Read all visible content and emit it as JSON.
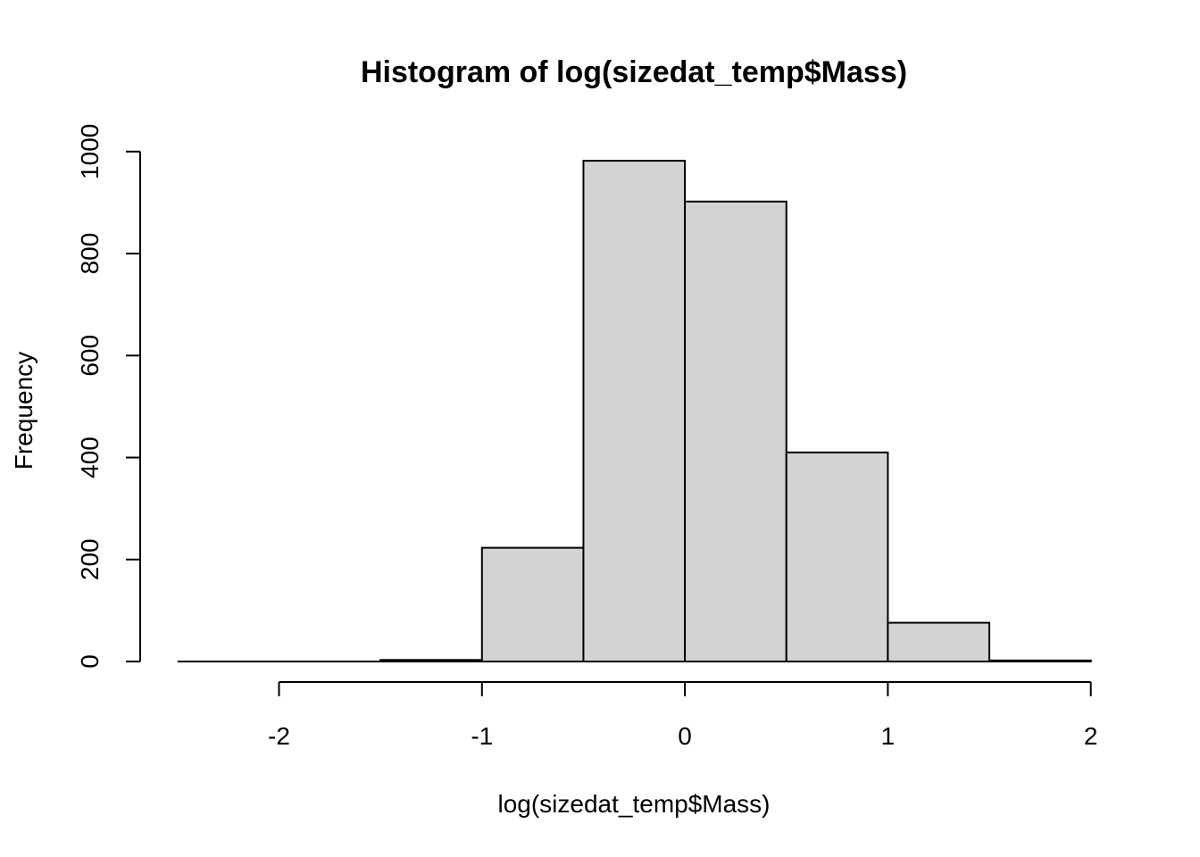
{
  "chart_data": {
    "type": "bar",
    "title": "Histogram of log(sizedat_temp$Mass)",
    "xlabel": "log(sizedat_temp$Mass)",
    "ylabel": "Frequency",
    "bins": [
      {
        "from": -2.5,
        "to": -2.0,
        "count": 1
      },
      {
        "from": -2.0,
        "to": -1.5,
        "count": 0
      },
      {
        "from": -1.5,
        "to": -1.0,
        "count": 3
      },
      {
        "from": -1.0,
        "to": -0.5,
        "count": 223
      },
      {
        "from": -0.5,
        "to": 0.0,
        "count": 982
      },
      {
        "from": 0.0,
        "to": 0.5,
        "count": 902
      },
      {
        "from": 0.5,
        "to": 1.0,
        "count": 410
      },
      {
        "from": 1.0,
        "to": 1.5,
        "count": 76
      },
      {
        "from": 1.5,
        "to": 2.0,
        "count": 2
      }
    ],
    "x_ticks": [
      -2,
      -1,
      0,
      1,
      2
    ],
    "x_tick_labels": [
      "-2",
      "-1",
      "0",
      "1",
      "2"
    ],
    "y_ticks": [
      0,
      200,
      400,
      600,
      800,
      1000
    ],
    "y_tick_labels": [
      "0",
      "200",
      "400",
      "600",
      "800",
      "1000"
    ],
    "xlim": [
      -2.5,
      2.0
    ],
    "ylim": [
      0,
      1000
    ],
    "grid": false,
    "legend": "none",
    "colors": {
      "bar_fill": "#d3d3d3",
      "bar_stroke": "#000000"
    }
  }
}
